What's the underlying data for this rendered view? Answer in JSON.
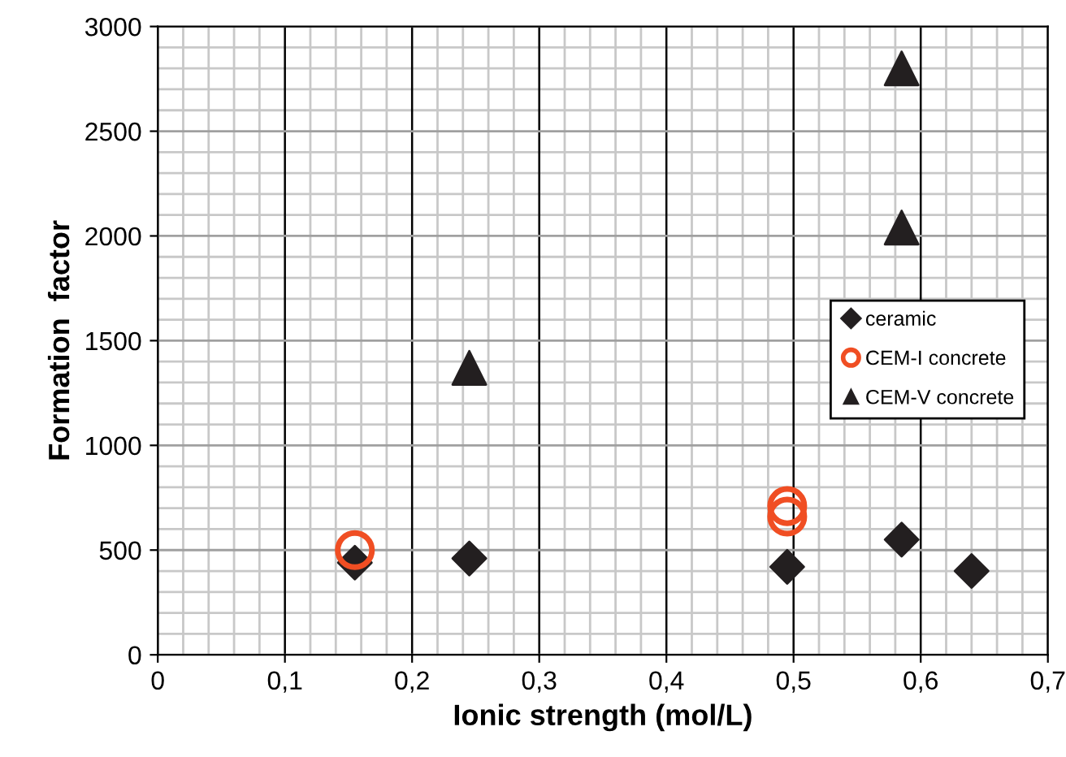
{
  "chart_data": {
    "type": "scatter",
    "xlabel": "Ionic strength (mol/L)",
    "ylabel": "Formation  factor",
    "series": [
      {
        "name": "ceramic",
        "color": "#231f20",
        "marker": "diamond",
        "x": [
          0.155,
          0.245,
          0.495,
          0.585,
          0.64
        ],
        "values": [
          440,
          460,
          420,
          550,
          400
        ]
      },
      {
        "name": "CEM-I concrete",
        "color": "#f04e23",
        "marker": "circle",
        "x": [
          0.155,
          0.495,
          0.495
        ],
        "values": [
          500,
          710,
          660
        ]
      },
      {
        "name": "CEM-V concrete",
        "color": "#231f20",
        "marker": "triangle",
        "x": [
          0.245,
          0.585,
          0.585
        ],
        "values": [
          1370,
          2800,
          2040
        ]
      }
    ],
    "xlim": [
      0,
      0.7
    ],
    "ylim": [
      0,
      3000
    ],
    "xticks": [
      0,
      {
        "value": 0.1,
        "label": "0,1"
      },
      {
        "value": 0.2,
        "label": "0,2"
      },
      {
        "value": 0.3,
        "label": "0,3"
      },
      {
        "value": 0.4,
        "label": "0,4"
      },
      {
        "value": 0.5,
        "label": "0,5"
      },
      {
        "value": 0.6,
        "label": "0,6"
      },
      {
        "value": 0.7,
        "label": "0,7"
      }
    ],
    "yticks": [
      0,
      500,
      1000,
      1500,
      2000,
      2500,
      3000
    ],
    "grid": true,
    "legend": "right"
  }
}
